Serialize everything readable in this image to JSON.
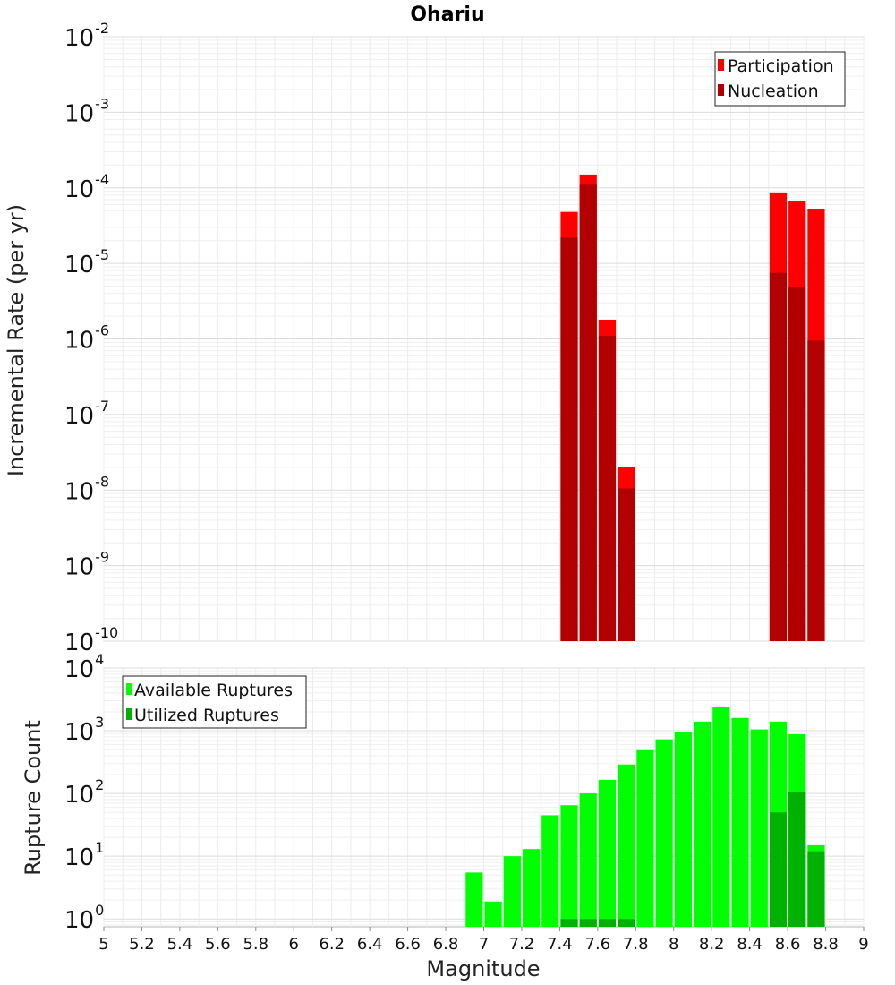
{
  "chart_data": [
    {
      "type": "bar",
      "title": "Ohariu",
      "ylabel": "Incremental Rate (per yr)",
      "xlabel": "",
      "yscale": "log",
      "xlim": [
        5,
        9
      ],
      "ylim": [
        1e-10,
        0.01
      ],
      "grid": true,
      "stacked": "overlay",
      "legend_position": "top-right",
      "x": [
        7.45,
        7.55,
        7.65,
        7.75,
        8.55,
        8.65,
        8.75
      ],
      "series": [
        {
          "name": "Participation",
          "color": "#ff0000",
          "values": [
            4.8e-05,
            0.00015,
            1.8e-06,
            2e-08,
            8.7e-05,
            6.7e-05,
            5.3e-05
          ]
        },
        {
          "name": "Nucleation",
          "color": "#b20000",
          "values": [
            2.2e-05,
            0.00011,
            1.1e-06,
            1.05e-08,
            7.5e-06,
            4.8e-06,
            9.5e-07
          ]
        }
      ]
    },
    {
      "type": "bar",
      "title": "",
      "ylabel": "Rupture Count",
      "xlabel": "Magnitude",
      "yscale": "log",
      "xlim": [
        5,
        9
      ],
      "ylim": [
        0.75,
        10000
      ],
      "grid": true,
      "stacked": "overlay",
      "legend_position": "top-left",
      "x": [
        6.95,
        7.05,
        7.15,
        7.25,
        7.35,
        7.45,
        7.55,
        7.65,
        7.75,
        7.85,
        7.95,
        8.05,
        8.15,
        8.25,
        8.35,
        8.45,
        8.55,
        8.65,
        8.75
      ],
      "series": [
        {
          "name": "Available Ruptures",
          "color": "#00ff00",
          "values": [
            5.5,
            1.9,
            10,
            13,
            45,
            65,
            100,
            165,
            290,
            490,
            730,
            950,
            1400,
            2400,
            1600,
            1050,
            1400,
            880,
            15
          ]
        },
        {
          "name": "Utilized Ruptures",
          "color": "#00b200",
          "values": [
            null,
            null,
            null,
            null,
            null,
            1,
            1,
            1,
            1,
            null,
            null,
            null,
            null,
            null,
            null,
            null,
            50,
            105,
            12
          ]
        }
      ]
    }
  ],
  "ticks": {
    "x": [
      "5",
      "5.2",
      "5.4",
      "5.6",
      "5.8",
      "6",
      "6.2",
      "6.4",
      "6.6",
      "6.8",
      "7",
      "7.2",
      "7.4",
      "7.6",
      "7.8",
      "8",
      "8.2",
      "8.4",
      "8.6",
      "8.8",
      "9"
    ],
    "top_y": [
      {
        "base": "10",
        "exp": "-2"
      },
      {
        "base": "10",
        "exp": "-3"
      },
      {
        "base": "10",
        "exp": "-4"
      },
      {
        "base": "10",
        "exp": "-5"
      },
      {
        "base": "10",
        "exp": "-6"
      },
      {
        "base": "10",
        "exp": "-7"
      },
      {
        "base": "10",
        "exp": "-8"
      },
      {
        "base": "10",
        "exp": "-9"
      },
      {
        "base": "10",
        "exp": "-10"
      }
    ],
    "bottom_y": [
      {
        "base": "10",
        "exp": "4"
      },
      {
        "base": "10",
        "exp": "3"
      },
      {
        "base": "10",
        "exp": "2"
      },
      {
        "base": "10",
        "exp": "1"
      },
      {
        "base": "10",
        "exp": "0"
      }
    ]
  }
}
